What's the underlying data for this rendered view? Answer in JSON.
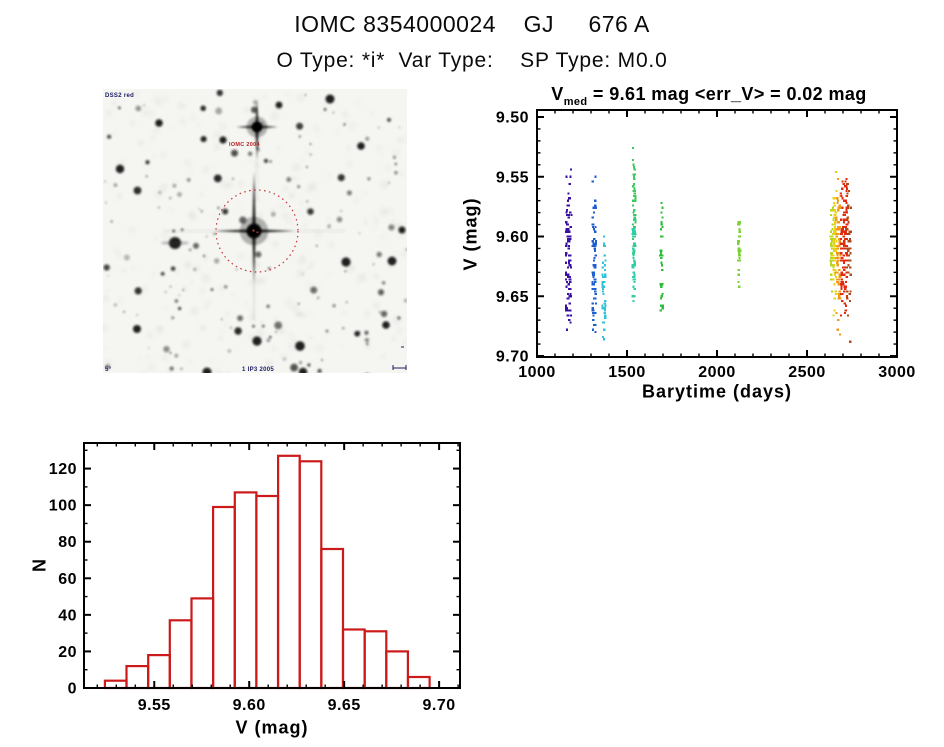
{
  "header": {
    "title": "IOMC 8354000024    GJ     676 A",
    "subtitle": "O Type: *i*  Var Type:    SP Type: M0.0"
  },
  "finder_image": {
    "survey_label": "DSS2 red",
    "target_label": "IOMC 2004",
    "bottom_label": "1 IP3 2005",
    "corner_label": "5°",
    "circle_color": "#c43333",
    "target_label_color": "#b32222",
    "annotation_color": "#1b1b66",
    "background": "#f5f5f2",
    "star_count": 150,
    "noise_count": 240,
    "seed": 42
  },
  "chart_data": [
    {
      "type": "scatter",
      "title": "V_med = 9.61 mag <err_V> = 0.02 mag",
      "title_var": "V",
      "title_sub": "med",
      "title_rest": " = 9.61 mag <err_V> = 0.02 mag",
      "xlabel": "Barytime (days)",
      "ylabel": "V (mag)",
      "xlim": [
        1000,
        3000
      ],
      "ylim": [
        9.7,
        9.5
      ],
      "y_axis_inverted": true,
      "x_minor_interval": 100,
      "y_minor_interval": 0.01,
      "grid": false,
      "x_ticks": [
        {
          "v": 1000,
          "label": "1000"
        },
        {
          "v": 1500,
          "label": "1500"
        },
        {
          "v": 2000,
          "label": "2000"
        },
        {
          "v": 2500,
          "label": "2500"
        },
        {
          "v": 3000,
          "label": "3000"
        }
      ],
      "y_ticks": [
        {
          "v": 9.5,
          "label": "9.50"
        },
        {
          "v": 9.55,
          "label": "9.55"
        },
        {
          "v": 9.6,
          "label": "9.60"
        },
        {
          "v": 9.65,
          "label": "9.65"
        },
        {
          "v": 9.7,
          "label": "9.70"
        }
      ],
      "clusters": [
        {
          "epoch": 1,
          "x": 1176,
          "x_spread": 16,
          "count": 95,
          "color": "#3a10a0",
          "y_mean": 9.614,
          "y_sigma": 0.03,
          "y_min": 9.528,
          "y_max": 9.682
        },
        {
          "epoch": 2,
          "x": 1318,
          "x_spread": 10,
          "count": 70,
          "color": "#1e5ed0",
          "y_mean": 9.628,
          "y_sigma": 0.034,
          "y_min": 9.54,
          "y_max": 9.688
        },
        {
          "epoch": 3,
          "x": 1372,
          "x_spread": 9,
          "count": 42,
          "color": "#30c2da",
          "y_mean": 9.648,
          "y_sigma": 0.026,
          "y_min": 9.596,
          "y_max": 9.692
        },
        {
          "epoch": 4,
          "x": 1540,
          "x_spread": 8,
          "count": 55,
          "color": "#3cc95e",
          "y_mean": 9.572,
          "y_sigma": 0.026,
          "y_min": 9.524,
          "y_max": 9.618
        },
        {
          "epoch": 5,
          "x": 1537,
          "x_spread": 6,
          "count": 48,
          "color": "#2ecfa6",
          "y_mean": 9.616,
          "y_sigma": 0.022,
          "y_min": 9.578,
          "y_max": 9.656
        },
        {
          "epoch": 6,
          "x": 1692,
          "x_spread": 7,
          "count": 34,
          "color": "#2fbe3a",
          "y_mean": 9.614,
          "y_sigma": 0.032,
          "y_min": 9.558,
          "y_max": 9.674
        },
        {
          "epoch": 7,
          "x": 2122,
          "x_spread": 7,
          "count": 30,
          "color": "#79d135",
          "y_mean": 9.61,
          "y_sigma": 0.018,
          "y_min": 9.584,
          "y_max": 9.646
        },
        {
          "epoch": 8,
          "x": 2640,
          "x_spread": 8,
          "count": 40,
          "color": "#b4d822",
          "y_mean": 9.612,
          "y_sigma": 0.022,
          "y_min": 9.572,
          "y_max": 9.652
        },
        {
          "epoch": 9,
          "x": 2656,
          "x_spread": 10,
          "count": 65,
          "color": "#ecd013",
          "y_mean": 9.612,
          "y_sigma": 0.028,
          "y_min": 9.544,
          "y_max": 9.672
        },
        {
          "epoch": 10,
          "x": 2674,
          "x_spread": 12,
          "count": 75,
          "color": "#f09a15",
          "y_mean": 9.616,
          "y_sigma": 0.03,
          "y_min": 9.548,
          "y_max": 9.69
        },
        {
          "epoch": 11,
          "x": 2706,
          "x_spread": 18,
          "count": 130,
          "color": "#e42a0e",
          "y_mean": 9.61,
          "y_sigma": 0.028,
          "y_min": 9.53,
          "y_max": 9.668
        },
        {
          "epoch": 12,
          "x": 2732,
          "x_spread": 12,
          "count": 40,
          "color": "#b24a18",
          "y_mean": 9.612,
          "y_sigma": 0.04,
          "y_min": 9.528,
          "y_max": 9.692
        }
      ]
    },
    {
      "type": "bar",
      "subtype": "histogram",
      "xlabel": "V (mag)",
      "ylabel": "N",
      "xlim": [
        9.513,
        9.711
      ],
      "ylim": [
        0,
        134
      ],
      "x_minor_interval": 0.01,
      "y_minor_interval": 10,
      "grid": false,
      "bar_color": "#cc1a1a",
      "bin_start": 9.524,
      "bin_width": 0.0114,
      "values": [
        4,
        12,
        18,
        37,
        49,
        99,
        107,
        105,
        127,
        124,
        76,
        32,
        31,
        20,
        6
      ],
      "x_ticks": [
        {
          "v": 9.55,
          "label": "9.55"
        },
        {
          "v": 9.6,
          "label": "9.60"
        },
        {
          "v": 9.65,
          "label": "9.65"
        },
        {
          "v": 9.7,
          "label": "9.70"
        }
      ],
      "y_ticks": [
        {
          "v": 0,
          "label": "0"
        },
        {
          "v": 20,
          "label": "20"
        },
        {
          "v": 40,
          "label": "40"
        },
        {
          "v": 60,
          "label": "60"
        },
        {
          "v": 80,
          "label": "80"
        },
        {
          "v": 100,
          "label": "100"
        },
        {
          "v": 120,
          "label": "120"
        }
      ]
    }
  ]
}
